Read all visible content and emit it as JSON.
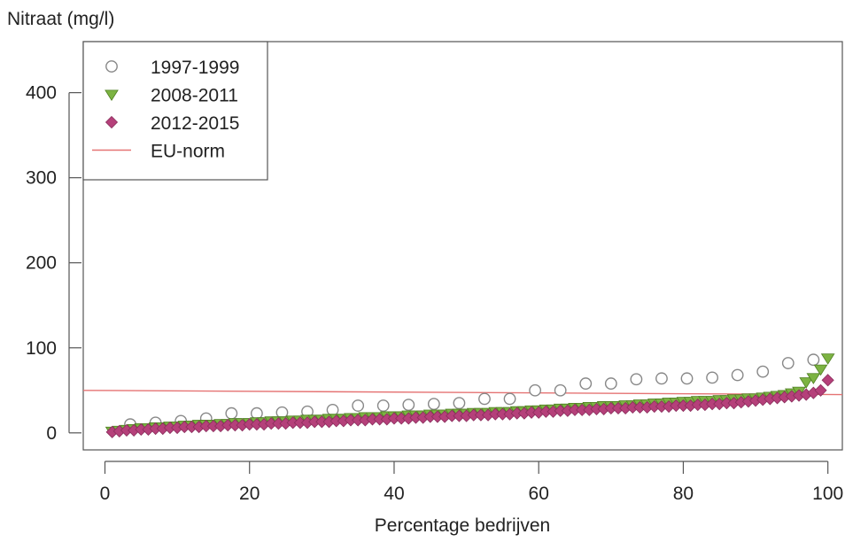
{
  "chart_data": {
    "type": "scatter",
    "ylabel": "Nitraat (mg/l)",
    "xlabel": "Percentage bedrijven",
    "xlim": [
      -3,
      102
    ],
    "ylim": [
      -20,
      460
    ],
    "x_ticks": [
      0,
      20,
      40,
      60,
      80,
      100
    ],
    "x_tick_labels": [
      "0",
      "20",
      "40",
      "60",
      "80",
      "100"
    ],
    "y_ticks": [
      0,
      100,
      200,
      300,
      400
    ],
    "y_tick_labels": [
      "0",
      "100",
      "200",
      "300",
      "400"
    ],
    "grid": false,
    "legend_position": "top-left",
    "legend": [
      {
        "label": "1997-1999",
        "marker": "open-circle",
        "color": "#888888"
      },
      {
        "label": "2008-2011",
        "marker": "triangle-down",
        "color": "#7cb342"
      },
      {
        "label": "2012-2015",
        "marker": "diamond",
        "color": "#b5407a"
      },
      {
        "label": "EU-norm",
        "marker": "line",
        "color": "#e57373"
      }
    ],
    "reference_line": {
      "name": "EU-norm",
      "from": [
        -3,
        50
      ],
      "to": [
        102,
        45
      ],
      "color": "#e57373"
    },
    "series": [
      {
        "name": "1997-1999",
        "marker": "open-circle",
        "color": "#888888",
        "x": [
          3.5,
          7,
          10.5,
          14,
          17.5,
          21,
          24.5,
          28,
          31.5,
          35,
          38.5,
          42,
          45.5,
          49,
          52.5,
          56,
          59.5,
          63,
          66.5,
          70,
          73.5,
          77,
          80.5,
          84,
          87.5,
          91,
          94.5,
          98
        ],
        "y": [
          10,
          12,
          14,
          17,
          23,
          23,
          24,
          25,
          27,
          32,
          32,
          33,
          34,
          35,
          40,
          40,
          50,
          50,
          58,
          58,
          63,
          64,
          64,
          65,
          68,
          72,
          82,
          86
        ]
      },
      {
        "name": "2008-2011",
        "marker": "triangle-down",
        "color": "#7cb342",
        "x": [
          1,
          2,
          3,
          4,
          5,
          6,
          7,
          8,
          9,
          10,
          11,
          12,
          13,
          14,
          15,
          16,
          17,
          18,
          19,
          20,
          21,
          22,
          23,
          24,
          25,
          26,
          27,
          28,
          29,
          30,
          31,
          32,
          33,
          34,
          35,
          36,
          37,
          38,
          39,
          40,
          41,
          42,
          43,
          44,
          45,
          46,
          47,
          48,
          49,
          50,
          51,
          52,
          53,
          54,
          55,
          56,
          57,
          58,
          59,
          60,
          61,
          62,
          63,
          64,
          65,
          66,
          67,
          68,
          69,
          70,
          71,
          72,
          73,
          74,
          75,
          76,
          77,
          78,
          79,
          80,
          81,
          82,
          83,
          84,
          85,
          86,
          87,
          88,
          89,
          90,
          91,
          92,
          93,
          94,
          95,
          96,
          97,
          98,
          99,
          100
        ],
        "y": [
          2,
          3,
          4,
          5,
          6,
          6,
          7,
          7,
          8,
          8,
          9,
          9,
          10,
          10,
          10,
          11,
          11,
          12,
          12,
          12,
          13,
          13,
          14,
          14,
          14,
          15,
          15,
          16,
          16,
          16,
          17,
          17,
          17,
          18,
          18,
          19,
          19,
          19,
          20,
          20,
          20,
          21,
          21,
          21,
          22,
          22,
          22,
          23,
          23,
          23,
          24,
          24,
          24,
          25,
          25,
          25,
          26,
          26,
          27,
          27,
          28,
          28,
          29,
          29,
          30,
          30,
          31,
          31,
          32,
          32,
          32,
          33,
          33,
          34,
          34,
          35,
          35,
          36,
          36,
          37,
          37,
          38,
          38,
          38,
          39,
          39,
          40,
          40,
          41,
          41,
          42,
          43,
          44,
          45,
          47,
          49,
          60,
          65,
          75,
          88
        ]
      },
      {
        "name": "2012-2015",
        "marker": "diamond",
        "color": "#b5407a",
        "x": [
          1,
          2,
          3,
          4,
          5,
          6,
          7,
          8,
          9,
          10,
          11,
          12,
          13,
          14,
          15,
          16,
          17,
          18,
          19,
          20,
          21,
          22,
          23,
          24,
          25,
          26,
          27,
          28,
          29,
          30,
          31,
          32,
          33,
          34,
          35,
          36,
          37,
          38,
          39,
          40,
          41,
          42,
          43,
          44,
          45,
          46,
          47,
          48,
          49,
          50,
          51,
          52,
          53,
          54,
          55,
          56,
          57,
          58,
          59,
          60,
          61,
          62,
          63,
          64,
          65,
          66,
          67,
          68,
          69,
          70,
          71,
          72,
          73,
          74,
          75,
          76,
          77,
          78,
          79,
          80,
          81,
          82,
          83,
          84,
          85,
          86,
          87,
          88,
          89,
          90,
          91,
          92,
          93,
          94,
          95,
          96,
          97,
          98,
          99,
          100
        ],
        "y": [
          1,
          2,
          3,
          3,
          4,
          4,
          5,
          5,
          6,
          6,
          7,
          7,
          7,
          8,
          8,
          8,
          9,
          9,
          9,
          10,
          10,
          10,
          11,
          11,
          11,
          12,
          12,
          12,
          13,
          13,
          13,
          14,
          14,
          15,
          15,
          15,
          16,
          16,
          16,
          17,
          17,
          17,
          18,
          18,
          19,
          19,
          19,
          20,
          20,
          20,
          21,
          21,
          21,
          22,
          22,
          22,
          23,
          23,
          24,
          24,
          25,
          25,
          26,
          26,
          27,
          27,
          27,
          28,
          28,
          29,
          29,
          29,
          30,
          30,
          30,
          31,
          31,
          31,
          32,
          32,
          32,
          33,
          33,
          34,
          34,
          35,
          35,
          36,
          37,
          38,
          39,
          40,
          41,
          42,
          43,
          44,
          45,
          47,
          50,
          62
        ]
      }
    ]
  }
}
